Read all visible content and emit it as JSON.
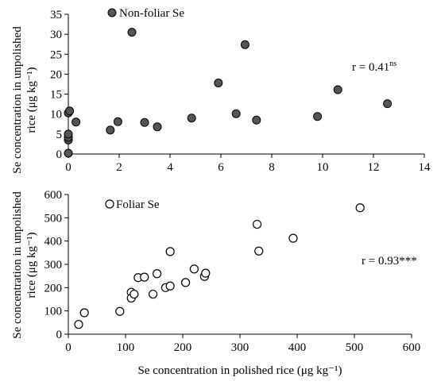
{
  "chart_data": [
    {
      "type": "scatter",
      "legend": "Non-foliar Se",
      "marker": "filled-circle",
      "marker_color": "#555555",
      "ylabel_line1": "Se concentration in unpolished",
      "ylabel_line2": "rice (μg kg⁻¹)",
      "xlabel": "",
      "annotation_main": "r = 0.41",
      "annotation_sup": "ns",
      "xlim": [
        0,
        14
      ],
      "ylim": [
        0,
        35
      ],
      "xticks": [
        "0",
        "2",
        "4",
        "6",
        "8",
        "10",
        "12",
        "14"
      ],
      "yticks": [
        "0",
        "5",
        "10",
        "15",
        "20",
        "25",
        "30",
        "35"
      ],
      "points": [
        {
          "x": 0.0,
          "y": 0.2
        },
        {
          "x": 0.0,
          "y": 3.5
        },
        {
          "x": 0.0,
          "y": 4.2
        },
        {
          "x": 0.0,
          "y": 5.0
        },
        {
          "x": 0.0,
          "y": 10.3
        },
        {
          "x": 0.05,
          "y": 10.8
        },
        {
          "x": 0.3,
          "y": 8.0
        },
        {
          "x": 1.65,
          "y": 6.0
        },
        {
          "x": 1.95,
          "y": 8.1
        },
        {
          "x": 2.5,
          "y": 30.5
        },
        {
          "x": 3.0,
          "y": 7.9
        },
        {
          "x": 3.5,
          "y": 6.8
        },
        {
          "x": 4.85,
          "y": 9.0
        },
        {
          "x": 5.9,
          "y": 17.8
        },
        {
          "x": 6.6,
          "y": 10.1
        },
        {
          "x": 6.95,
          "y": 27.4
        },
        {
          "x": 7.4,
          "y": 8.5
        },
        {
          "x": 9.8,
          "y": 9.4
        },
        {
          "x": 10.6,
          "y": 16.1
        },
        {
          "x": 12.55,
          "y": 12.6
        }
      ]
    },
    {
      "type": "scatter",
      "legend": "Foliar Se",
      "marker": "open-circle",
      "marker_color": "#000000",
      "ylabel_line1": "Se concentration in unpolished",
      "ylabel_line2": "rice (μg kg⁻¹)",
      "xlabel": "Se concentration in polished rice (μg kg⁻¹)",
      "annotation_main": "r = 0.93***",
      "annotation_sup": "",
      "xlim": [
        0,
        600
      ],
      "ylim": [
        0,
        600
      ],
      "xticks": [
        "0",
        "100",
        "200",
        "300",
        "400",
        "500",
        "600"
      ],
      "yticks": [
        "0",
        "100",
        "200",
        "300",
        "400",
        "500",
        "600"
      ],
      "points": [
        {
          "x": 18,
          "y": 42
        },
        {
          "x": 28,
          "y": 92
        },
        {
          "x": 90,
          "y": 98
        },
        {
          "x": 110,
          "y": 180
        },
        {
          "x": 110,
          "y": 155
        },
        {
          "x": 115,
          "y": 172
        },
        {
          "x": 122,
          "y": 243
        },
        {
          "x": 133,
          "y": 245
        },
        {
          "x": 148,
          "y": 172
        },
        {
          "x": 155,
          "y": 260
        },
        {
          "x": 170,
          "y": 200
        },
        {
          "x": 178,
          "y": 207
        },
        {
          "x": 178,
          "y": 355
        },
        {
          "x": 205,
          "y": 222
        },
        {
          "x": 220,
          "y": 280
        },
        {
          "x": 238,
          "y": 248
        },
        {
          "x": 240,
          "y": 262
        },
        {
          "x": 330,
          "y": 472
        },
        {
          "x": 333,
          "y": 357
        },
        {
          "x": 393,
          "y": 412
        },
        {
          "x": 510,
          "y": 543
        }
      ]
    }
  ]
}
